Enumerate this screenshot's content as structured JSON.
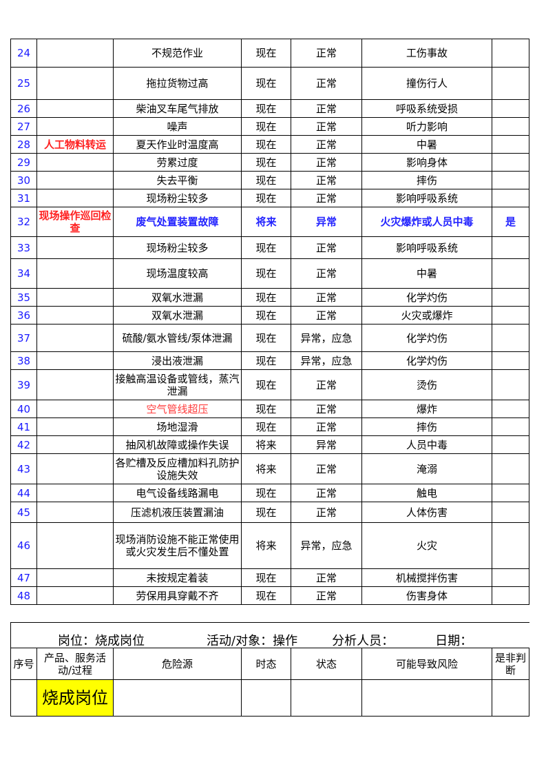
{
  "colors": {
    "number": "#1a1aff",
    "highlight_red": "#ff2020",
    "highlight_blue": "#2222ff",
    "cell_yellow": "#ffff00"
  },
  "rows": [
    {
      "no": "24",
      "activity": "",
      "hazard": "不规范作业",
      "time": "现在",
      "state": "正常",
      "risk": "工伤事故",
      "judge": ""
    },
    {
      "no": "25",
      "activity": "",
      "hazard": "拖拉货物过高",
      "time": "现在",
      "state": "正常",
      "risk": "撞伤行人",
      "judge": ""
    },
    {
      "no": "26",
      "activity": "",
      "hazard": "柴油叉车尾气排放",
      "time": "现在",
      "state": "正常",
      "risk": "呼吸系统受损",
      "judge": ""
    },
    {
      "no": "27",
      "activity": "",
      "hazard": "噪声",
      "time": "现在",
      "state": "正常",
      "risk": "听力影响",
      "judge": ""
    },
    {
      "no": "28",
      "activity": "人工物料转运",
      "hazard": "夏天作业时温度高",
      "time": "现在",
      "state": "正常",
      "risk": "中暑",
      "judge": ""
    },
    {
      "no": "29",
      "activity": "",
      "hazard": "劳累过度",
      "time": "现在",
      "state": "正常",
      "risk": "影响身体",
      "judge": ""
    },
    {
      "no": "30",
      "activity": "",
      "hazard": "失去平衡",
      "time": "现在",
      "state": "正常",
      "risk": "摔伤",
      "judge": ""
    },
    {
      "no": "31",
      "activity": "",
      "hazard": "现场粉尘较多",
      "time": "现在",
      "state": "正常",
      "risk": "影响呼吸系统",
      "judge": ""
    },
    {
      "no": "32",
      "activity": "现场操作巡回检查",
      "hazard": "废气处置装置故障",
      "time": "将来",
      "state": "异常",
      "risk": "火灾爆炸或人员中毒",
      "judge": "是"
    },
    {
      "no": "33",
      "activity": "",
      "hazard": "现场粉尘较多",
      "time": "现在",
      "state": "正常",
      "risk": "影响呼吸系统",
      "judge": ""
    },
    {
      "no": "34",
      "activity": "",
      "hazard": "现场温度较高",
      "time": "现在",
      "state": "正常",
      "risk": "中暑",
      "judge": ""
    },
    {
      "no": "35",
      "activity": "",
      "hazard": "双氧水泄漏",
      "time": "现在",
      "state": "正常",
      "risk": "化学灼伤",
      "judge": ""
    },
    {
      "no": "36",
      "activity": "",
      "hazard": "双氧水泄漏",
      "time": "现在",
      "state": "正常",
      "risk": "火灾或爆炸",
      "judge": ""
    },
    {
      "no": "37",
      "activity": "",
      "hazard": "硫酸/氨水管线/泵体泄漏",
      "time": "现在",
      "state": "异常，应急",
      "risk": "化学灼伤",
      "judge": ""
    },
    {
      "no": "38",
      "activity": "",
      "hazard": "浸出液泄漏",
      "time": "现在",
      "state": "异常，应急",
      "risk": "化学灼伤",
      "judge": ""
    },
    {
      "no": "39",
      "activity": "",
      "hazard": "接触高温设备或管线，蒸汽泄漏",
      "time": "现在",
      "state": "正常",
      "risk": "烫伤",
      "judge": ""
    },
    {
      "no": "40",
      "activity": "",
      "hazard": "空气管线超压",
      "time": "现在",
      "state": "正常",
      "risk": "爆炸",
      "judge": ""
    },
    {
      "no": "41",
      "activity": "",
      "hazard": "场地湿滑",
      "time": "现在",
      "state": "正常",
      "risk": "摔伤",
      "judge": ""
    },
    {
      "no": "42",
      "activity": "",
      "hazard": "抽风机故障或操作失误",
      "time": "将来",
      "state": "异常",
      "risk": "人员中毒",
      "judge": ""
    },
    {
      "no": "43",
      "activity": "",
      "hazard": "各贮槽及反应槽加料孔防护设施失效",
      "time": "将来",
      "state": "正常",
      "risk": "淹溺",
      "judge": ""
    },
    {
      "no": "44",
      "activity": "",
      "hazard": "电气设备线路漏电",
      "time": "现在",
      "state": "正常",
      "risk": "触电",
      "judge": ""
    },
    {
      "no": "45",
      "activity": "",
      "hazard": "压滤机液压装置漏油",
      "time": "现在",
      "state": "正常",
      "risk": "人体伤害",
      "judge": ""
    },
    {
      "no": "46",
      "activity": "",
      "hazard": "现场消防设施不能正常使用或火灾发生后不懂处置",
      "time": "将来",
      "state": "异常，应急",
      "risk": "火灾",
      "judge": ""
    },
    {
      "no": "47",
      "activity": "",
      "hazard": "未按规定着装",
      "time": "现在",
      "state": "正常",
      "risk": "机械搅拌伤害",
      "judge": ""
    },
    {
      "no": "48",
      "activity": "",
      "hazard": "劳保用具穿戴不齐",
      "time": "现在",
      "state": "正常",
      "risk": "伤害身体",
      "judge": ""
    }
  ],
  "form2": {
    "post": "岗位：烧成岗位",
    "activity": "活动/对象：操作",
    "analyst": "分析人员：",
    "date": "日期：",
    "headers": [
      "序号",
      "产品、服务活动/过程",
      "危险源",
      "时态",
      "状态",
      "可能导致风险",
      "是非判断"
    ],
    "row": {
      "no": "",
      "activity": "烧成岗位",
      "hazard": "",
      "time": "",
      "state": "",
      "risk": "",
      "judge": ""
    }
  }
}
